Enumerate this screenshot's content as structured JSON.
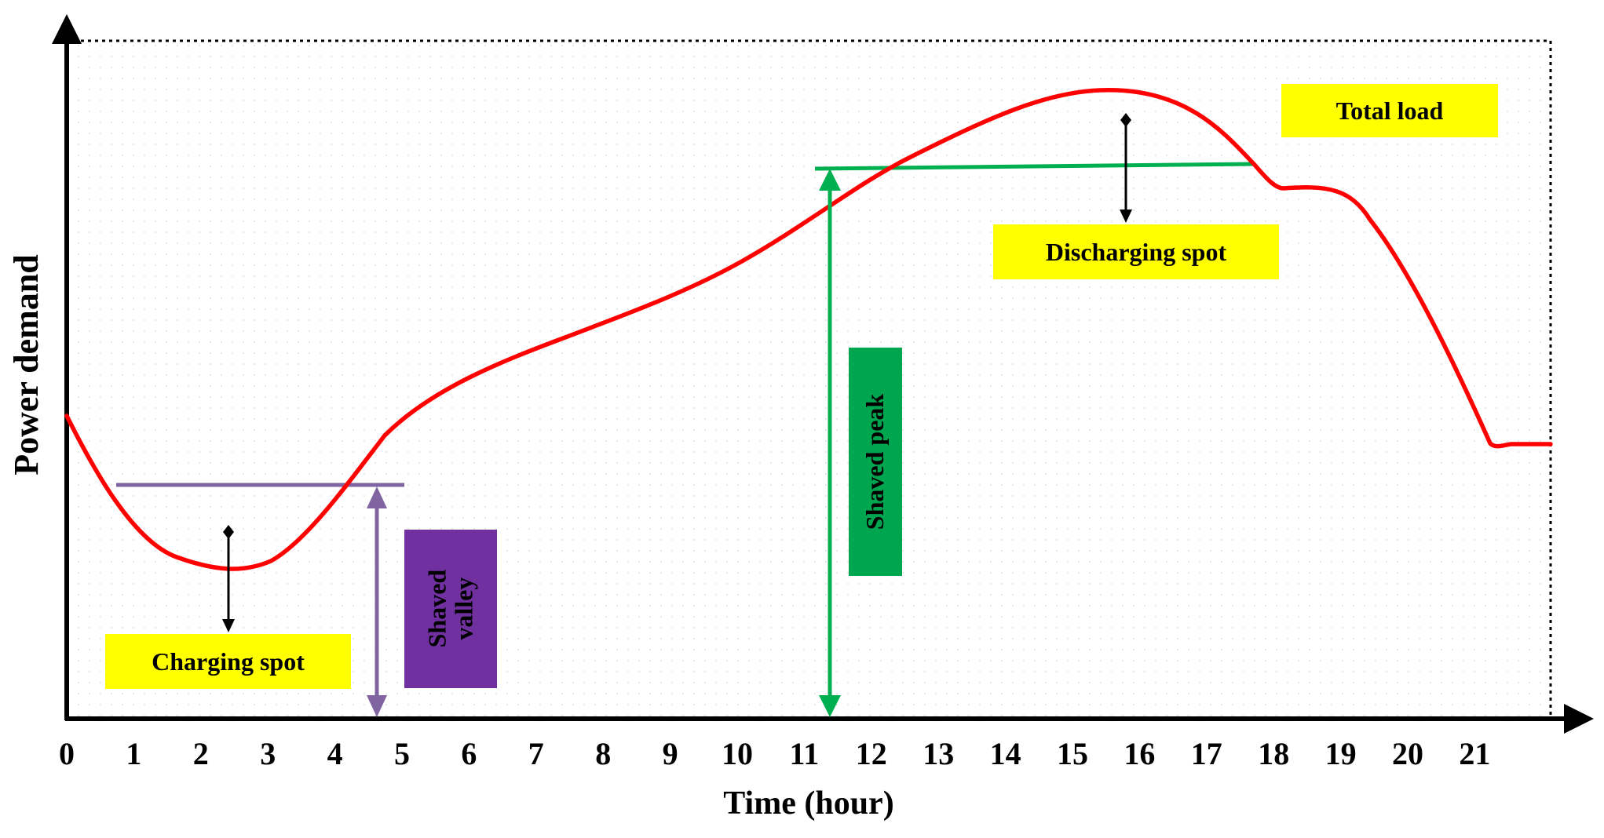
{
  "axes": {
    "y_label": "Power demand",
    "x_label": "Time (hour)",
    "x_ticks": [
      "0",
      "1",
      "2",
      "3",
      "4",
      "5",
      "6",
      "7",
      "8",
      "9",
      "10",
      "11",
      "12",
      "13",
      "14",
      "15",
      "16",
      "17",
      "18",
      "19",
      "20",
      "21"
    ]
  },
  "labels": {
    "total_load": "Total load",
    "discharging_spot": "Discharging spot",
    "charging_spot": "Charging spot",
    "shaved_peak": "Shaved peak",
    "shaved_valley": "Shaved valley"
  },
  "colors": {
    "load_curve": "#ff0000",
    "peak_line": "#00b050",
    "valley_line": "#8064a2",
    "label_yellow": "#ffff00",
    "shaved_peak_box": "#00a550",
    "shaved_valley_box": "#7030a0"
  }
}
